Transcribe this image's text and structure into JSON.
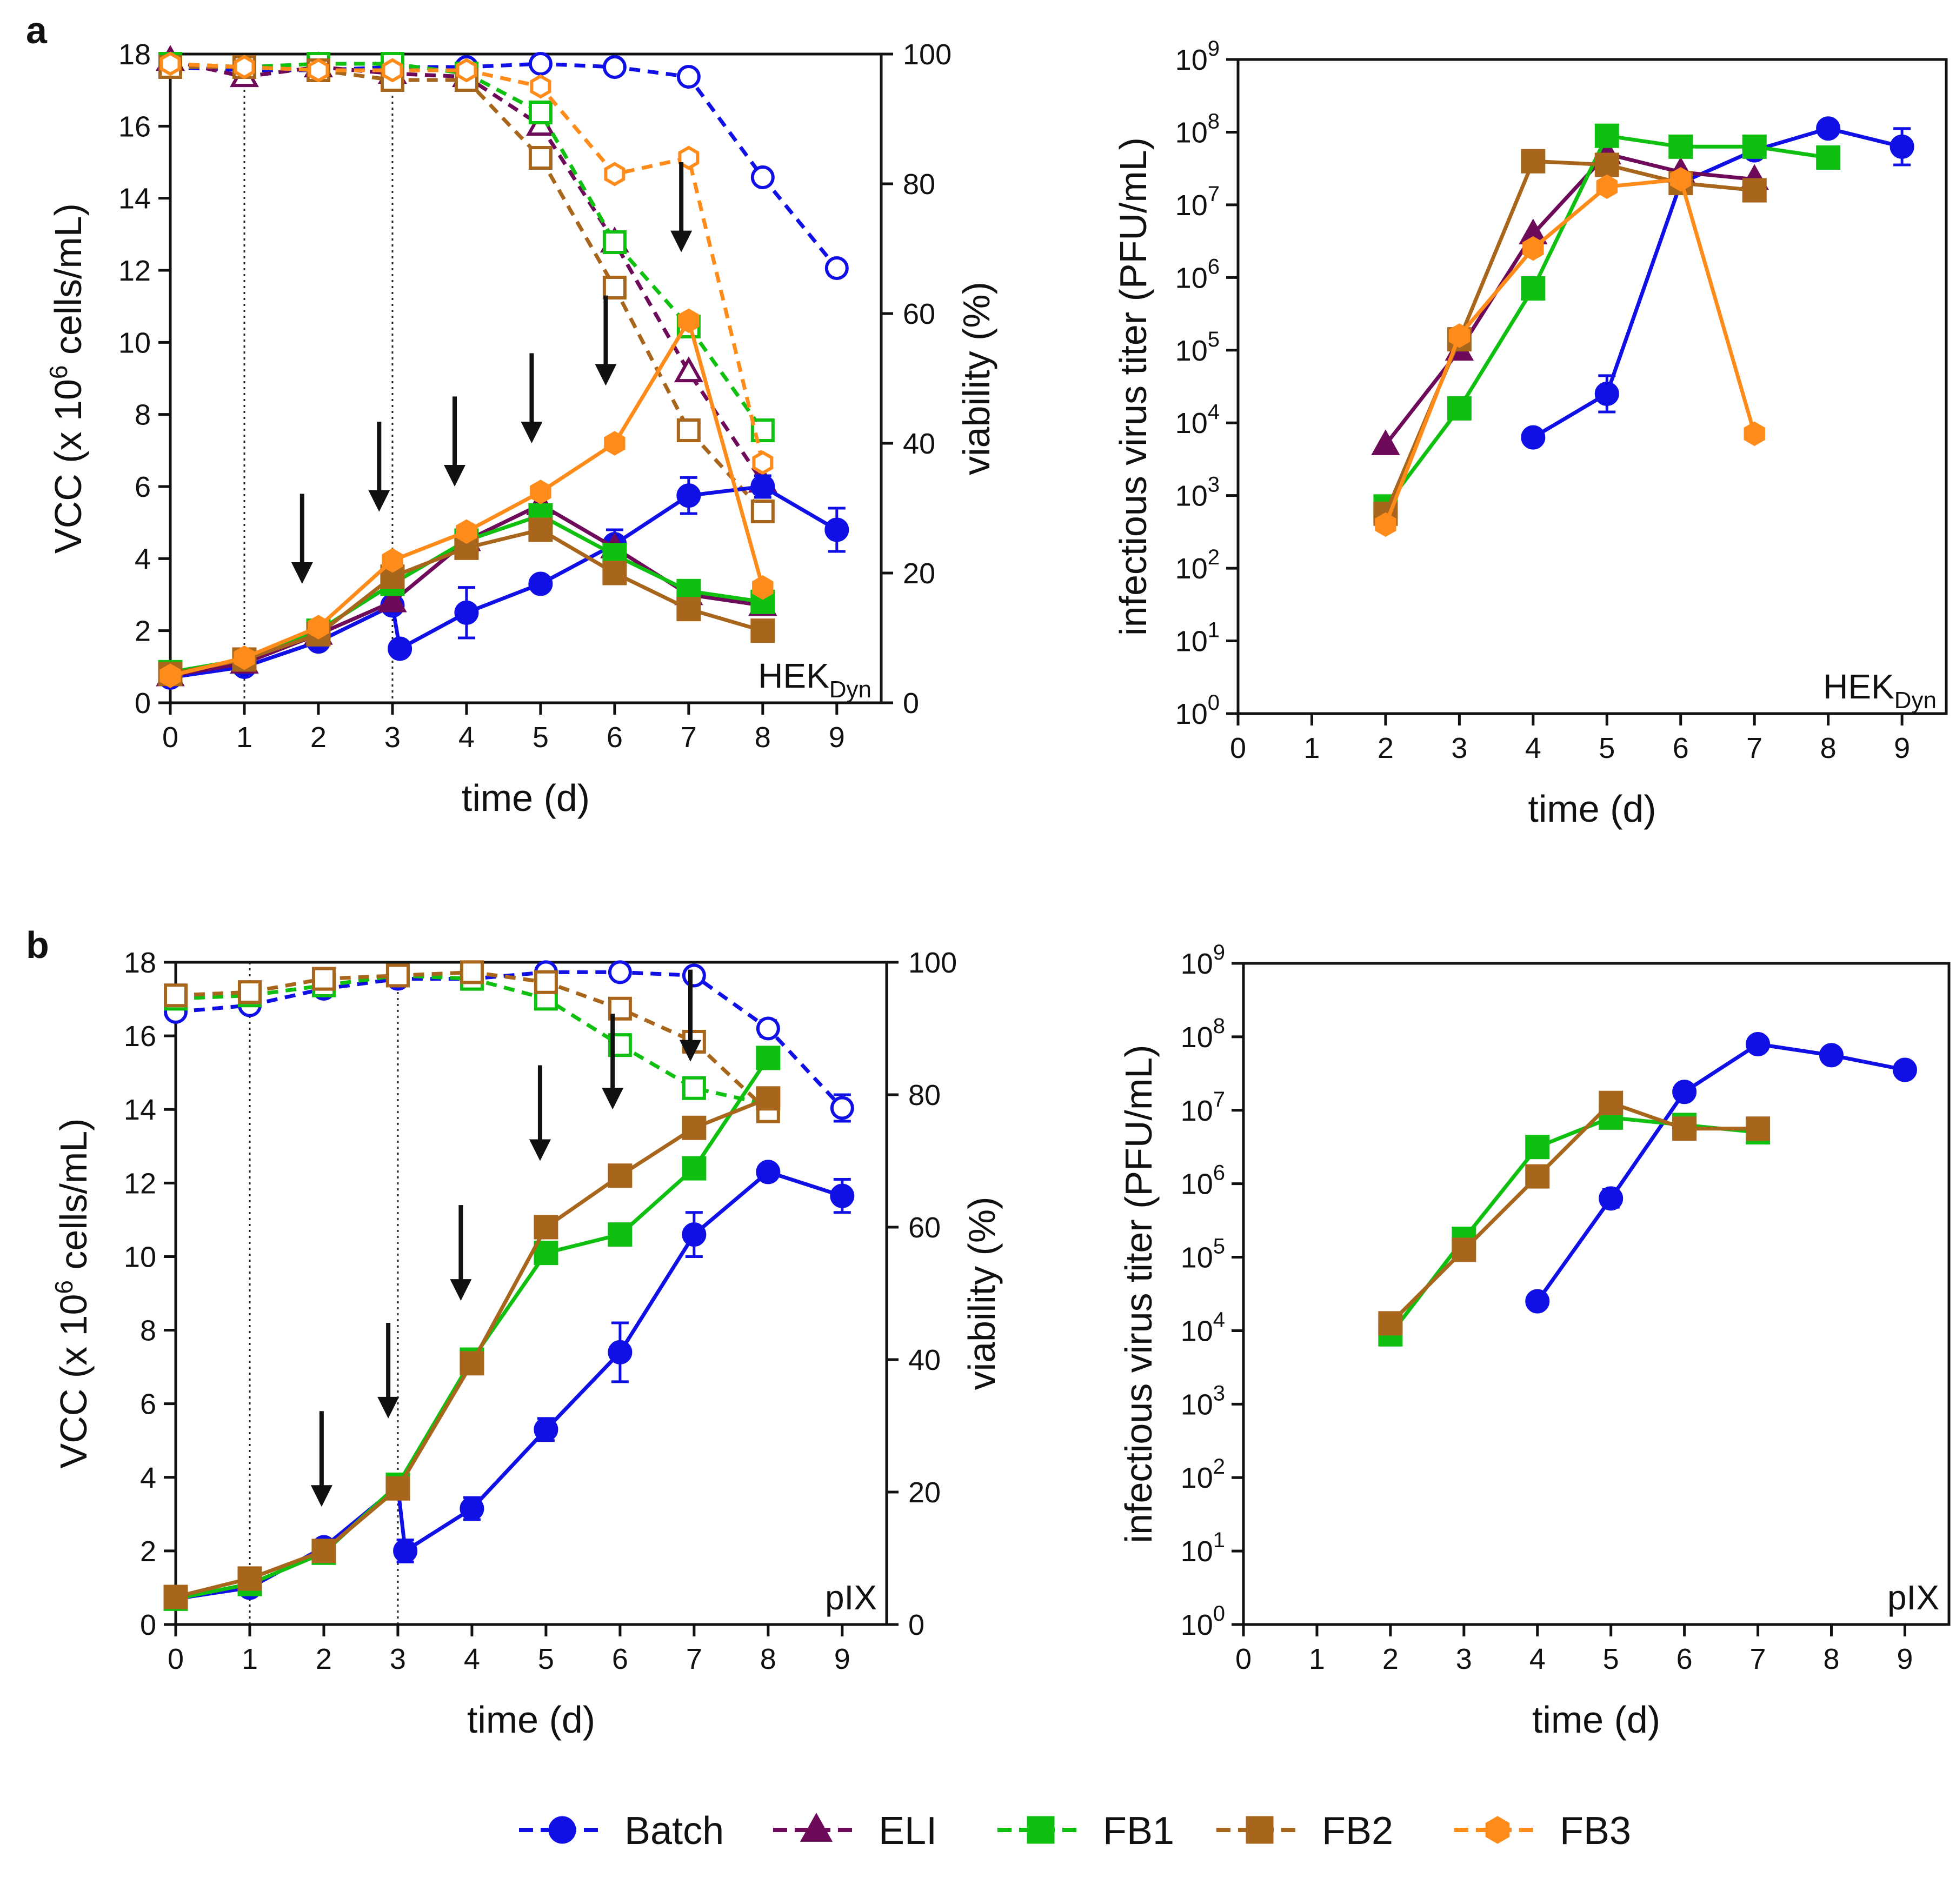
{
  "figure": {
    "legend": [
      {
        "name": "Batch",
        "color": "#1010e6",
        "marker": "circle"
      },
      {
        "name": "ELI",
        "color": "#6e0a5a",
        "marker": "triangle"
      },
      {
        "name": "FB1",
        "color": "#10c010",
        "marker": "square"
      },
      {
        "name": "FB2",
        "color": "#a8661c",
        "marker": "square"
      },
      {
        "name": "FB3",
        "color": "#ff8c1a",
        "marker": "hexagon"
      }
    ]
  },
  "chart_data": [
    {
      "id": "a-left",
      "panel_letter": "a",
      "type": "line",
      "annotation": "HEK_Dyn",
      "annotation_main": "HEK",
      "annotation_sub": "Dyn",
      "xlabel": "time (d)",
      "ylabel": "VCC (x 10^6 cells/mL)",
      "ylabel_prefix": "VCC (x 10",
      "ylabel_sup": "6",
      "ylabel_suffix": " cells/mL)",
      "y2label": "viability (%)",
      "xlim": [
        0,
        9.6
      ],
      "xticks": [
        0,
        1,
        2,
        3,
        4,
        5,
        6,
        7,
        8,
        9
      ],
      "ylim": [
        0,
        18
      ],
      "yticks": [
        0,
        2,
        4,
        6,
        8,
        10,
        12,
        14,
        16,
        18
      ],
      "y2lim": [
        0,
        100
      ],
      "y2ticks": [
        0,
        20,
        40,
        60,
        80,
        100
      ],
      "vlines": [
        1,
        3
      ],
      "arrows": [
        {
          "x": 1.78,
          "y_top": 5.8,
          "y_bottom": 3.3
        },
        {
          "x": 2.82,
          "y_top": 7.8,
          "y_bottom": 5.3
        },
        {
          "x": 3.84,
          "y_top": 8.5,
          "y_bottom": 6.0
        },
        {
          "x": 4.88,
          "y_top": 9.7,
          "y_bottom": 7.2
        },
        {
          "x": 5.88,
          "y_top": 11.3,
          "y_bottom": 8.8
        },
        {
          "x": 6.9,
          "y_top": 15.0,
          "y_bottom": 12.5
        }
      ],
      "vcc": [
        {
          "name": "Batch",
          "x": [
            0,
            1,
            2,
            3,
            3.1,
            4,
            5,
            6,
            7,
            8,
            9
          ],
          "y": [
            0.7,
            1.0,
            1.7,
            2.7,
            1.5,
            2.5,
            3.3,
            4.4,
            5.75,
            6.0,
            4.8
          ],
          "err": [
            0.1,
            0.1,
            0.1,
            0.2,
            0.1,
            0.7,
            0.1,
            0.4,
            0.5,
            0.3,
            0.6
          ]
        },
        {
          "name": "ELI",
          "x": [
            0,
            1,
            2,
            3,
            4,
            5,
            6,
            7,
            8
          ],
          "y": [
            0.75,
            1.1,
            1.9,
            2.8,
            4.5,
            5.5,
            4.3,
            3.0,
            2.7
          ]
        },
        {
          "name": "FB1",
          "x": [
            0,
            1,
            2,
            3,
            4,
            5,
            6,
            7,
            8
          ],
          "y": [
            0.85,
            1.2,
            2.0,
            3.3,
            4.5,
            5.2,
            4.1,
            3.1,
            2.8
          ]
        },
        {
          "name": "FB2",
          "x": [
            0,
            1,
            2,
            3,
            4,
            5,
            6,
            7,
            8
          ],
          "y": [
            0.8,
            1.2,
            1.9,
            3.5,
            4.3,
            4.8,
            3.6,
            2.6,
            2.0
          ]
        },
        {
          "name": "FB3",
          "x": [
            0,
            1,
            2,
            3,
            4,
            5,
            6,
            7,
            8
          ],
          "y": [
            0.75,
            1.25,
            2.1,
            3.95,
            4.75,
            5.85,
            7.2,
            10.6,
            3.2
          ]
        }
      ],
      "viability": [
        {
          "name": "Batch",
          "x": [
            0,
            1,
            2,
            3,
            4,
            5,
            6,
            7,
            8,
            9
          ],
          "y": [
            98,
            97.5,
            97.5,
            98,
            98,
            98.5,
            98,
            96.5,
            81,
            67
          ]
        },
        {
          "name": "ELI",
          "x": [
            0,
            1,
            2,
            3,
            4,
            5,
            6,
            7,
            8
          ],
          "y": [
            99,
            96.5,
            98,
            97,
            96.5,
            89,
            71,
            51,
            34
          ]
        },
        {
          "name": "FB1",
          "x": [
            0,
            1,
            2,
            3,
            4,
            5,
            6,
            7,
            8
          ],
          "y": [
            98.5,
            98,
            98.5,
            98.5,
            97,
            91,
            71,
            58,
            42
          ]
        },
        {
          "name": "FB2",
          "x": [
            0,
            1,
            2,
            3,
            4,
            5,
            6,
            7,
            8
          ],
          "y": [
            98,
            98,
            97.5,
            96,
            96,
            84,
            64,
            42,
            29.5
          ]
        },
        {
          "name": "FB3",
          "x": [
            0,
            1,
            2,
            3,
            4,
            5,
            6,
            7,
            8
          ],
          "y": [
            98.5,
            98,
            97.5,
            97.5,
            97.5,
            95,
            81.5,
            84,
            37
          ]
        }
      ]
    },
    {
      "id": "a-right",
      "type": "line",
      "annotation": "HEK_Dyn",
      "annotation_main": "HEK",
      "annotation_sub": "Dyn",
      "xlabel": "time (d)",
      "ylabel": "infectious virus titer (PFU/mL)",
      "xlim": [
        0,
        9.6
      ],
      "xticks": [
        0,
        1,
        2,
        3,
        4,
        5,
        6,
        7,
        8,
        9
      ],
      "yscale": "log",
      "ylim_exp": [
        0,
        9
      ],
      "ytick_base": "10",
      "ytick_exps": [
        "0",
        "1",
        "2",
        "3",
        "4",
        "5",
        "6",
        "7",
        "8",
        "9"
      ],
      "series": [
        {
          "name": "Batch",
          "x": [
            4,
            5,
            6,
            7,
            8,
            9
          ],
          "log10y": [
            3.8,
            4.4,
            7.3,
            7.75,
            8.05,
            7.8
          ],
          "err": [
            0,
            0.25,
            0.1,
            0,
            0,
            0.25
          ]
        },
        {
          "name": "ELI",
          "x": [
            2,
            3,
            4,
            5,
            6,
            7
          ],
          "log10y": [
            3.7,
            5.0,
            6.6,
            7.7,
            7.45,
            7.35
          ]
        },
        {
          "name": "FB1",
          "x": [
            2,
            3,
            4,
            5,
            6,
            7,
            8
          ],
          "log10y": [
            2.85,
            4.2,
            5.85,
            7.95,
            7.8,
            7.8,
            7.65
          ]
        },
        {
          "name": "FB2",
          "x": [
            2,
            3,
            4,
            5,
            6,
            7
          ],
          "log10y": [
            2.75,
            5.15,
            7.6,
            7.55,
            7.3,
            7.2
          ]
        },
        {
          "name": "FB3",
          "x": [
            2,
            3,
            4,
            5,
            6,
            7
          ],
          "log10y": [
            2.6,
            5.2,
            6.4,
            7.25,
            7.35,
            3.85
          ]
        }
      ]
    },
    {
      "id": "b-left",
      "panel_letter": "b",
      "type": "line",
      "annotation": "pIX",
      "xlabel": "time (d)",
      "ylabel": "VCC (x 10^6 cells/mL)",
      "ylabel_prefix": "VCC (x 10",
      "ylabel_sup": "6",
      "ylabel_suffix": " cells/mL)",
      "y2label": "viability (%)",
      "xlim": [
        0,
        9.6
      ],
      "xticks": [
        0,
        1,
        2,
        3,
        4,
        5,
        6,
        7,
        8,
        9
      ],
      "ylim": [
        0,
        18
      ],
      "yticks": [
        0,
        2,
        4,
        6,
        8,
        10,
        12,
        14,
        16,
        18
      ],
      "y2lim": [
        0,
        100
      ],
      "y2ticks": [
        0,
        20,
        40,
        60,
        80,
        100
      ],
      "vlines": [
        1,
        3
      ],
      "arrows": [
        {
          "x": 1.97,
          "y_top": 5.8,
          "y_bottom": 3.2
        },
        {
          "x": 2.87,
          "y_top": 8.2,
          "y_bottom": 5.6
        },
        {
          "x": 3.85,
          "y_top": 11.4,
          "y_bottom": 8.8
        },
        {
          "x": 4.92,
          "y_top": 15.2,
          "y_bottom": 12.6
        },
        {
          "x": 5.9,
          "y_top": 16.6,
          "y_bottom": 14.0
        },
        {
          "x": 6.95,
          "y_top": 17.8,
          "y_bottom": 15.3
        }
      ],
      "vcc": [
        {
          "name": "Batch",
          "x": [
            0,
            1,
            2,
            3,
            3.1,
            4,
            5,
            6,
            7,
            8,
            9
          ],
          "y": [
            0.7,
            1.0,
            2.1,
            3.75,
            2.0,
            3.15,
            5.3,
            7.4,
            10.6,
            12.3,
            11.65
          ],
          "err": [
            0.1,
            0.1,
            0.1,
            0.1,
            0.3,
            0.3,
            0.3,
            0.8,
            0.6,
            0.1,
            0.45
          ]
        },
        {
          "name": "FB1",
          "x": [
            0,
            1,
            2,
            3,
            4,
            5,
            6,
            7,
            8
          ],
          "y": [
            0.7,
            1.1,
            1.95,
            3.8,
            7.2,
            10.1,
            10.6,
            12.4,
            15.4
          ]
        },
        {
          "name": "FB2",
          "x": [
            0,
            1,
            2,
            3,
            4,
            5,
            6,
            7,
            8
          ],
          "y": [
            0.75,
            1.25,
            2.0,
            3.7,
            7.1,
            10.8,
            12.2,
            13.5,
            14.3
          ]
        }
      ],
      "viability": [
        {
          "name": "Batch",
          "x": [
            0,
            1,
            2,
            3,
            4,
            5,
            6,
            7,
            8,
            9
          ],
          "y": [
            92.5,
            93.5,
            96,
            97.5,
            97.5,
            98.5,
            98.5,
            98,
            90,
            78
          ],
          "err": [
            0,
            0,
            0,
            0,
            0,
            0,
            0,
            0,
            1.2,
            2
          ]
        },
        {
          "name": "FB1",
          "x": [
            0,
            1,
            2,
            3,
            4,
            5,
            6,
            7,
            8
          ],
          "y": [
            94.5,
            95,
            96.5,
            98,
            97.5,
            94.5,
            87.5,
            81,
            78.5
          ]
        },
        {
          "name": "FB2",
          "x": [
            0,
            1,
            2,
            3,
            4,
            5,
            6,
            7,
            8
          ],
          "y": [
            95,
            95.5,
            97.5,
            98,
            98.5,
            97,
            93,
            88,
            77.5
          ]
        }
      ]
    },
    {
      "id": "b-right",
      "type": "line",
      "annotation": "pIX",
      "xlabel": "time (d)",
      "ylabel": "infectious virus titer (PFU/mL)",
      "xlim": [
        0,
        9.6
      ],
      "xticks": [
        0,
        1,
        2,
        3,
        4,
        5,
        6,
        7,
        8,
        9
      ],
      "yscale": "log",
      "ylim_exp": [
        0,
        9
      ],
      "ytick_base": "10",
      "ytick_exps": [
        "0",
        "1",
        "2",
        "3",
        "4",
        "5",
        "6",
        "7",
        "8",
        "9"
      ],
      "series": [
        {
          "name": "Batch",
          "x": [
            4,
            5,
            6,
            7,
            8,
            9
          ],
          "log10y": [
            4.4,
            5.8,
            7.25,
            7.9,
            7.75,
            7.55
          ],
          "err": [
            0,
            0.12,
            0.1,
            0,
            0,
            0.1
          ]
        },
        {
          "name": "FB1",
          "x": [
            2,
            3,
            4,
            5,
            6,
            7
          ],
          "log10y": [
            3.95,
            5.25,
            6.5,
            6.9,
            6.8,
            6.7
          ]
        },
        {
          "name": "FB2",
          "x": [
            2,
            3,
            4,
            5,
            6,
            7
          ],
          "log10y": [
            4.1,
            5.1,
            6.1,
            7.1,
            6.75,
            6.75
          ]
        }
      ]
    }
  ]
}
